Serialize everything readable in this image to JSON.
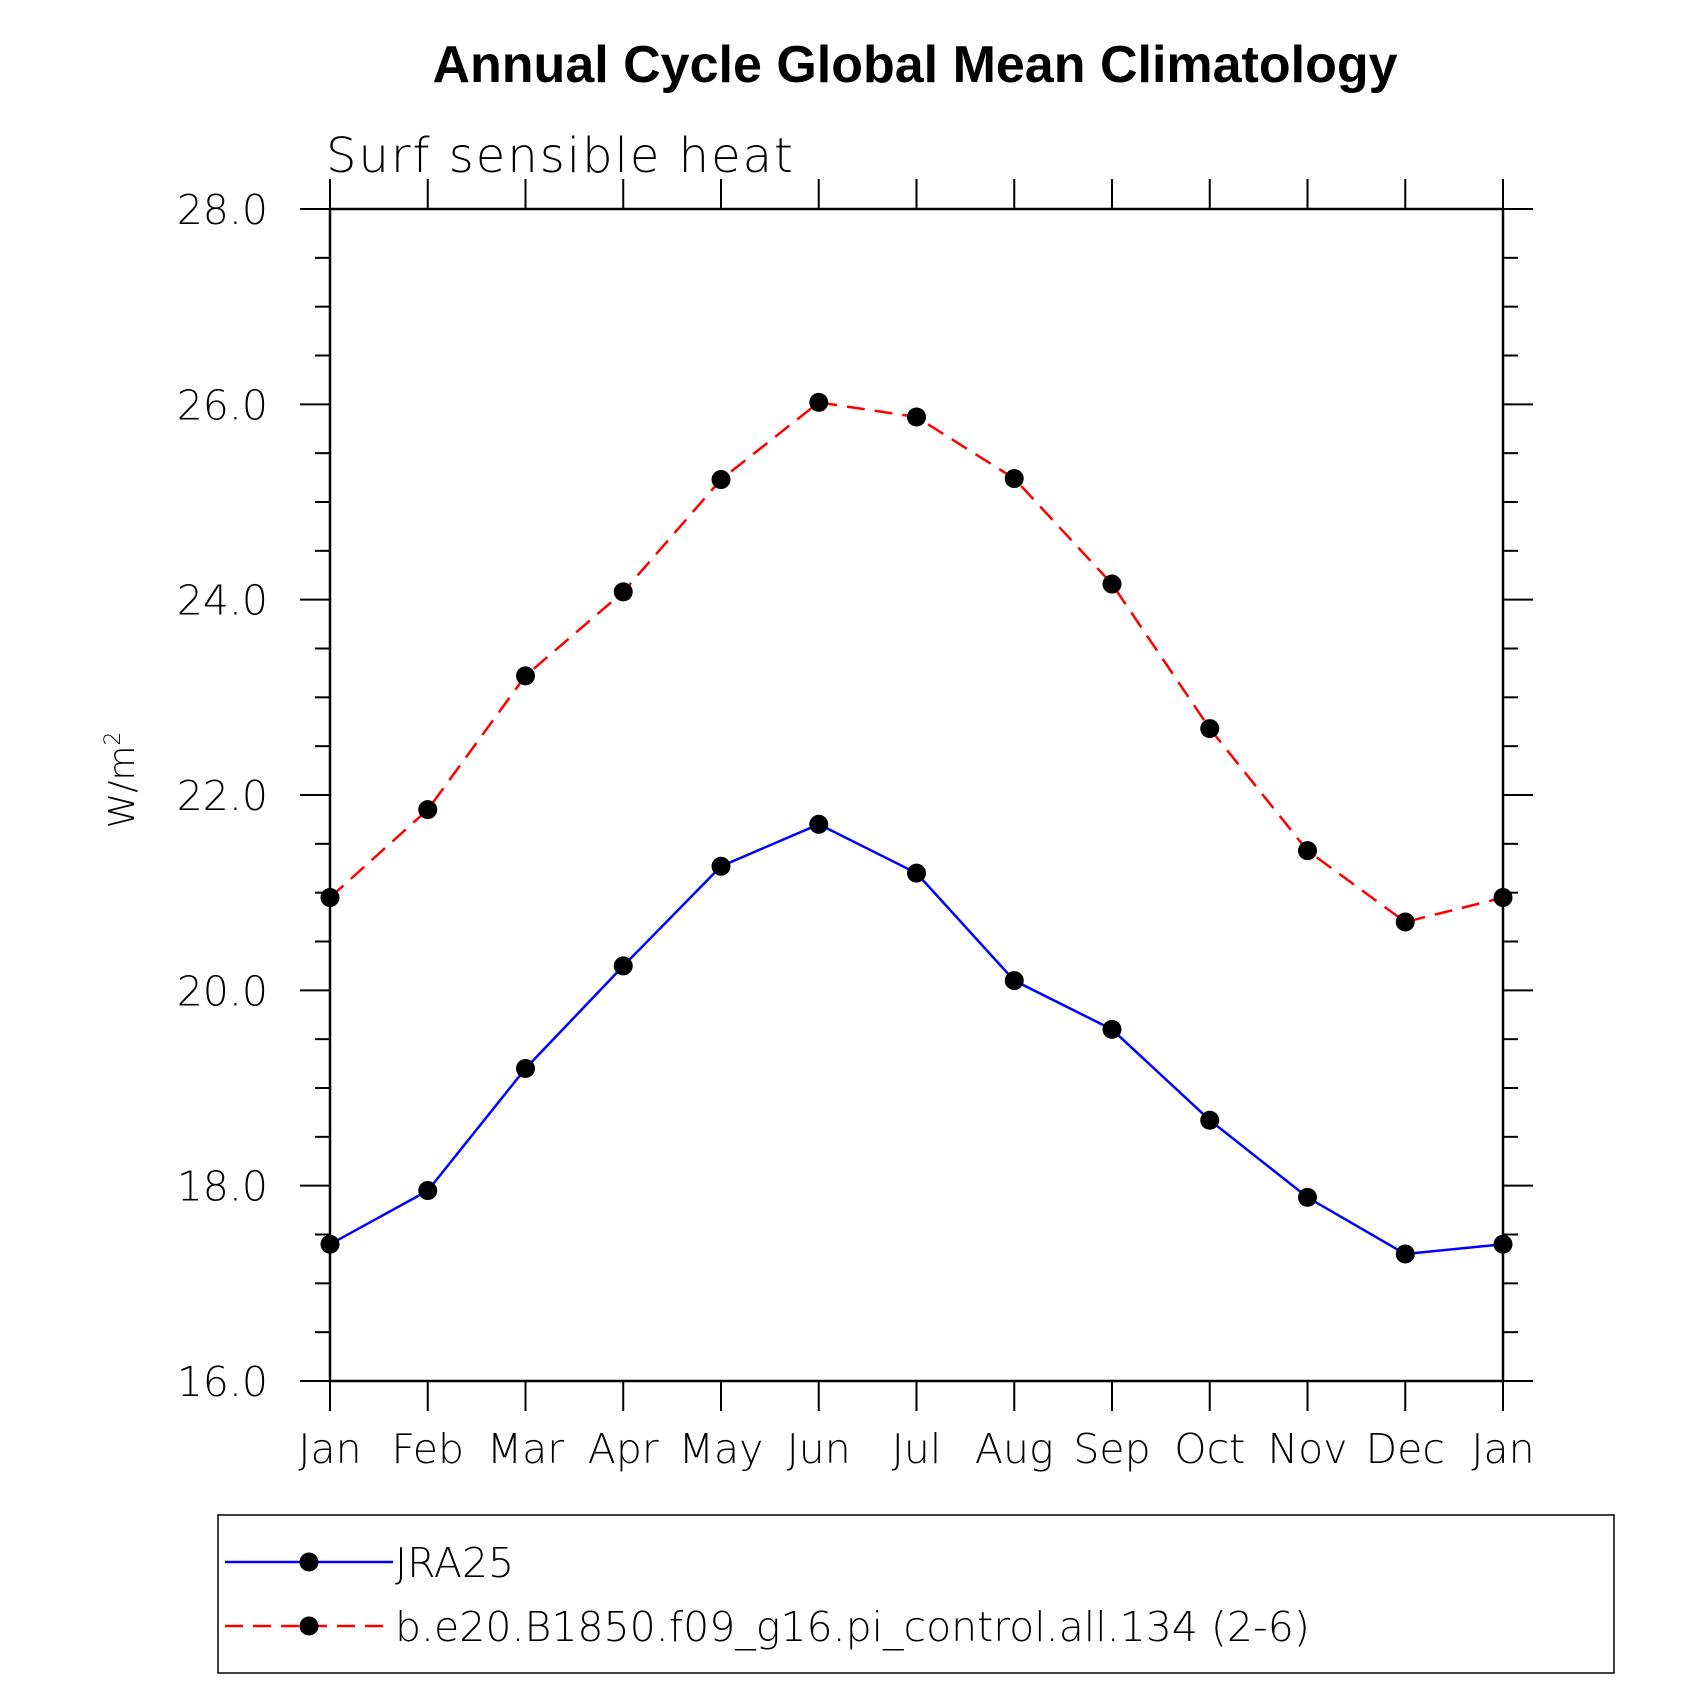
{
  "chart_data": {
    "type": "line",
    "title": "Annual Cycle Global Mean Climatology",
    "subtitle": "Surf sensible heat",
    "ylabel": "W/m",
    "ylabel_superscript": "2",
    "xlabel": "",
    "ylim": [
      16.0,
      28.0
    ],
    "y_major_ticks": [
      "16.0",
      "18.0",
      "20.0",
      "22.0",
      "24.0",
      "26.0",
      "28.0"
    ],
    "y_minor_step": 0.5,
    "categories": [
      "Jan",
      "Feb",
      "Mar",
      "Apr",
      "May",
      "Jun",
      "Jul",
      "Aug",
      "Sep",
      "Oct",
      "Nov",
      "Dec",
      "Jan"
    ],
    "grid": false,
    "legend_position": "bottom",
    "series": [
      {
        "name": "JRA25",
        "color": "#0000ff",
        "dash": "solid",
        "marker": "filled-circle",
        "values": [
          17.4,
          17.95,
          19.2,
          20.25,
          21.27,
          21.7,
          21.2,
          20.1,
          19.6,
          18.67,
          17.88,
          17.3,
          17.4
        ]
      },
      {
        "name": "b.e20.B1850.f09_g16.pi_control.all.134 (2-6)",
        "color": "#ff0000",
        "dash": "dashed",
        "marker": "filled-circle",
        "values": [
          20.95,
          21.85,
          23.22,
          24.08,
          25.23,
          26.02,
          25.87,
          25.24,
          24.16,
          22.68,
          21.43,
          20.7,
          20.95
        ]
      }
    ]
  }
}
